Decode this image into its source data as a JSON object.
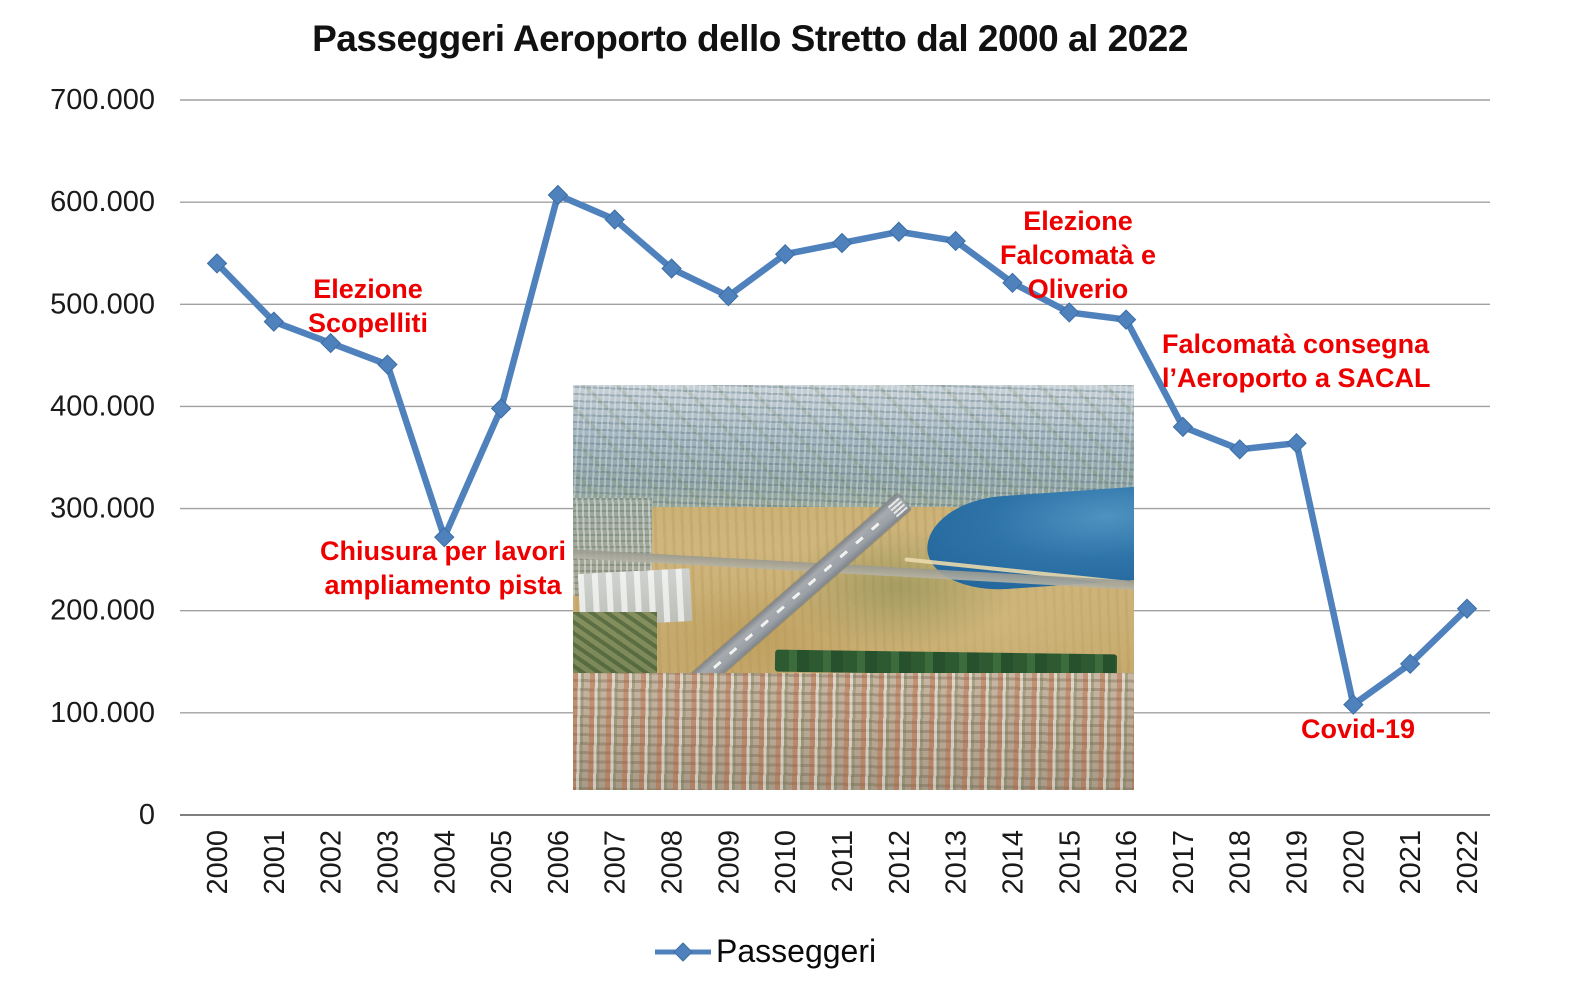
{
  "title": "Passeggeri Aeroporto dello Stretto dal 2000 al 2022",
  "legend": {
    "label": "Passeggeri"
  },
  "colors": {
    "series": "#4f81bd",
    "series_edge": "#3a6ea5",
    "annotation": "#ee0000",
    "gridline": "#a0a0a0",
    "axis_line": "#7f7f7f",
    "axis_text": "#1a1a1a"
  },
  "photo": {
    "semantic": "aerial-photo-airport-runway-city-sea"
  },
  "chart_data": {
    "type": "line",
    "title": "Passeggeri Aeroporto dello Stretto dal 2000 al 2022",
    "xlabel": "",
    "ylabel": "",
    "grid": true,
    "legend_position": "bottom",
    "marker": "diamond",
    "ylim": [
      0,
      700000
    ],
    "y_tick_values": [
      700000,
      600000,
      500000,
      400000,
      300000,
      200000,
      100000,
      0
    ],
    "y_tick_labels": [
      "700.000",
      "600.000",
      "500.000",
      "400.000",
      "300.000",
      "200.000",
      "100.000",
      "0"
    ],
    "categories": [
      "2000",
      "2001",
      "2002",
      "2003",
      "2004",
      "2005",
      "2006",
      "2007",
      "2008",
      "2009",
      "2010",
      "2011",
      "2012",
      "2013",
      "2014",
      "2015",
      "2016",
      "2017",
      "2018",
      "2019",
      "2020",
      "2021",
      "2022"
    ],
    "series": [
      {
        "name": "Passeggeri",
        "values": [
          540000,
          483000,
          462000,
          441000,
          272000,
          398000,
          607000,
          583000,
          535000,
          508000,
          549000,
          560000,
          571000,
          562000,
          521000,
          492000,
          485000,
          380000,
          358000,
          364000,
          108000,
          148000,
          202000
        ]
      }
    ],
    "annotations": [
      {
        "id": "elezione-scopelliti",
        "lines": [
          "Elezione",
          "Scopelliti"
        ],
        "target_year": "2002"
      },
      {
        "id": "chiusura-lavori",
        "lines": [
          "Chiusura per lavori",
          "ampliamento pista"
        ],
        "target_year": "2004"
      },
      {
        "id": "elezione-falcomata-oliverio",
        "lines": [
          "Elezione",
          "Falcomatà e",
          "Oliverio"
        ],
        "target_year": "2014"
      },
      {
        "id": "falcomata-sacal",
        "lines": [
          "Falcomatà consegna",
          "l’Aeroporto a SACAL"
        ],
        "target_year": "2016"
      },
      {
        "id": "covid",
        "lines": [
          "Covid-19"
        ],
        "target_year": "2020"
      }
    ]
  }
}
